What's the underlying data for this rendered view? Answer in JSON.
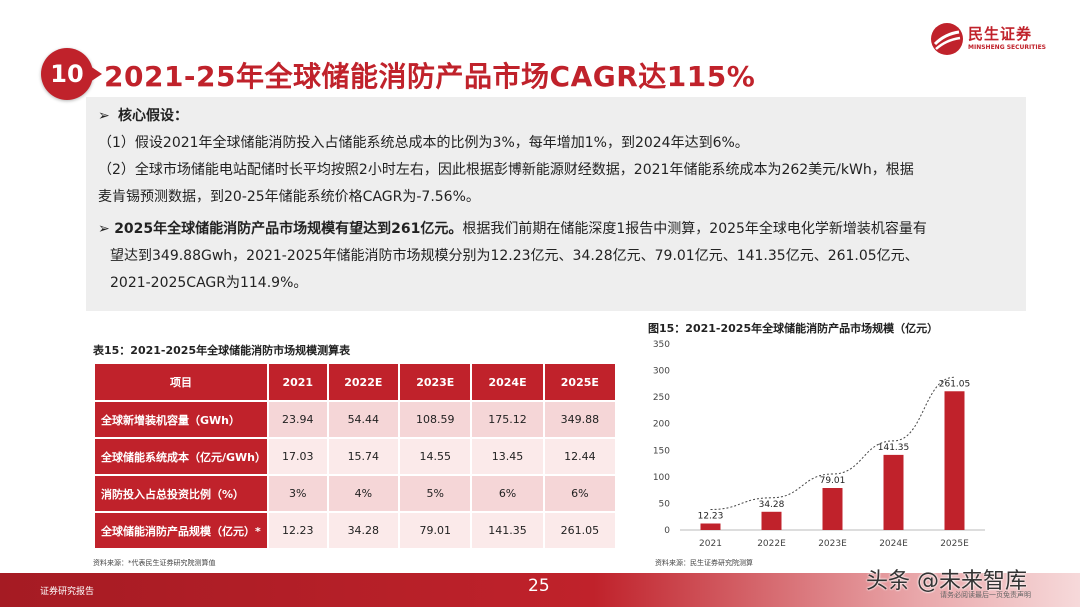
{
  "header": {
    "badge": "10",
    "title": "2021-25年全球储能消防产品市场CAGR达115%",
    "logo_cn": "民生证券",
    "logo_en": "MINSHENG SECURITIES",
    "brand_color": "#c0222b"
  },
  "assumptions": {
    "heading": "核心假设：",
    "bullet_glyph": "➢",
    "item1": "（1）假设2021年全球储能消防投入占储能系统总成本的比例为3%，每年增加1%，到2024年达到6%。",
    "item2_line1": "（2）全球市场储能电站配储时长平均按照2小时左右，因此根据彭博新能源财经数据，2021年储能系统成本为262美元/kWh，根据",
    "item2_line2": "麦肯锡预测数据，到20-25年储能系统价格CAGR为-7.56%。",
    "conclusion_bold": "2025年全球储能消防产品市场规模有望达到261亿元。",
    "conclusion_rest": "根据我们前期在储能深度1报告中测算，2025年全球电化学新增装机容量有",
    "conclusion_line2": "望达到349.88Gwh，2021-2025年储能消防市场规模分别为12.23亿元、34.28亿元、79.01亿元、141.35亿元、261.05亿元、",
    "conclusion_line3": "2021-2025CAGR为114.9%。"
  },
  "table": {
    "title": "表15：2021-2025年全球储能消防市场规模测算表",
    "headers": [
      "项目",
      "2021",
      "2022E",
      "2023E",
      "2024E",
      "2025E"
    ],
    "rows": [
      {
        "label": "全球新增装机容量（GWh）",
        "values": [
          "23.94",
          "54.44",
          "108.59",
          "175.12",
          "349.88"
        ]
      },
      {
        "label": "全球储能系统成本（亿元/GWh）",
        "values": [
          "17.03",
          "15.74",
          "14.55",
          "13.45",
          "12.44"
        ]
      },
      {
        "label": "消防投入占总投资比例（%）",
        "values": [
          "3%",
          "4%",
          "5%",
          "6%",
          "6%"
        ]
      },
      {
        "label": "全球储能消防产品规模（亿元）*",
        "values": [
          "12.23",
          "34.28",
          "79.01",
          "141.35",
          "261.05"
        ]
      }
    ],
    "source": "资料来源：*代表民生证券研究院测算值"
  },
  "chart_data": {
    "type": "bar",
    "title": "图15：2021-2025年全球储能消防产品市场规模（亿元）",
    "categories": [
      "2021",
      "2022E",
      "2023E",
      "2024E",
      "2025E"
    ],
    "values": [
      12.23,
      34.28,
      79.01,
      141.35,
      261.05
    ],
    "value_labels": [
      "12.23",
      "34.28",
      "79.01",
      "141.35",
      "261.05"
    ],
    "yticks": [
      "0",
      "50",
      "100",
      "150",
      "200",
      "250",
      "300",
      "350"
    ],
    "ylim": [
      0,
      350
    ],
    "trend_line": "dashed",
    "bar_color": "#c0222b",
    "grid": false,
    "source": "资料来源：民生证券研究院测算"
  },
  "footer": {
    "left_text": "证券研究报告",
    "page_number": "25",
    "watermark": "头条 @未来智库",
    "watermark_small": "请务必阅读最后一页免责声明"
  }
}
